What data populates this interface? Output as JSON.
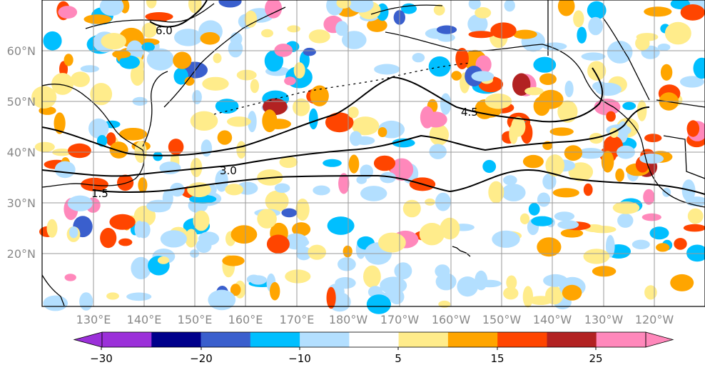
{
  "map": {
    "lat_labels": [
      "60°N",
      "50°N",
      "40°N",
      "30°N",
      "20°N"
    ],
    "lon_labels": [
      "130°E",
      "140°E",
      "150°E",
      "160°E",
      "170°E",
      "180°W",
      "170°W",
      "160°W",
      "150°W",
      "140°W",
      "130°W",
      "120°W"
    ],
    "contour_labels": [
      "6.0",
      "4.5",
      "3.0",
      "1.5"
    ],
    "colors": {
      "ocean_bg": "#ffffff",
      "land_outline": "#000000",
      "grid": "#999999",
      "contour": "#000000"
    }
  },
  "colorbar": {
    "tick_labels": [
      "−30",
      "−20",
      "−10",
      "5",
      "15",
      "25"
    ],
    "bins": [
      {
        "color": "#9b30d9"
      },
      {
        "color": "#00008b"
      },
      {
        "color": "#3a5fcd"
      },
      {
        "color": "#00bfff"
      },
      {
        "color": "#b3dfff"
      },
      {
        "color": "#ffffff"
      },
      {
        "color": "#ffec8b"
      },
      {
        "color": "#ffa500"
      },
      {
        "color": "#ff4500"
      },
      {
        "color": "#b22222"
      },
      {
        "color": "#ff88bb"
      }
    ]
  },
  "anomaly_blobs": [
    {
      "color": "#b3dfff"
    },
    {
      "color": "#00bfff"
    },
    {
      "color": "#3a5fcd"
    },
    {
      "color": "#ffec8b"
    },
    {
      "color": "#ffa500"
    },
    {
      "color": "#ff4500"
    },
    {
      "color": "#ff88bb"
    },
    {
      "color": "#b22222"
    }
  ]
}
